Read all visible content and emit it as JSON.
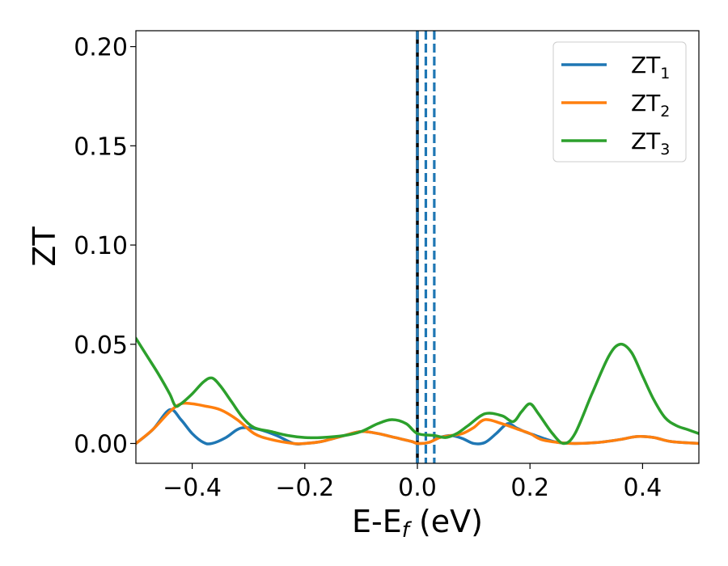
{
  "chart_data": {
    "type": "line",
    "title": "",
    "xlabel": "E-E",
    "xlabel_sub": "f",
    "xlabel_unit": " (eV)",
    "ylabel": "ZT",
    "xlim": [
      -0.5,
      0.5
    ],
    "ylim": [
      -0.01,
      0.208
    ],
    "x_ticks": [
      -0.4,
      -0.2,
      0.0,
      0.2,
      0.4
    ],
    "x_tick_labels": [
      "−0.4",
      "−0.2",
      "0.0",
      "0.2",
      "0.4"
    ],
    "y_ticks": [
      0.0,
      0.05,
      0.1,
      0.15,
      0.2
    ],
    "y_tick_labels": [
      "0.00",
      "0.05",
      "0.10",
      "0.15",
      "0.20"
    ],
    "grid": false,
    "legend_position": "top-right",
    "vertical_lines": [
      {
        "x": 0.0,
        "style": "solid",
        "color": "#000000"
      },
      {
        "x": 0.0,
        "style": "dashed",
        "color": "#1f77b4"
      },
      {
        "x": 0.015,
        "style": "dashed",
        "color": "#1f77b4"
      },
      {
        "x": 0.03,
        "style": "dashed",
        "color": "#1f77b4"
      }
    ],
    "series": [
      {
        "name": "ZT",
        "name_sub": "1",
        "color": "#1f77b4",
        "points": [
          [
            -0.5,
            0.0
          ],
          [
            -0.47,
            0.007
          ],
          [
            -0.44,
            0.017
          ],
          [
            -0.42,
            0.012
          ],
          [
            -0.4,
            0.005
          ],
          [
            -0.38,
            0.0005
          ],
          [
            -0.365,
            0.0
          ],
          [
            -0.34,
            0.003
          ],
          [
            -0.32,
            0.007
          ],
          [
            -0.305,
            0.008
          ],
          [
            -0.28,
            0.007
          ],
          [
            -0.25,
            0.004
          ],
          [
            -0.22,
            0.0
          ],
          [
            -0.2,
            0.0
          ],
          [
            -0.17,
            0.001
          ],
          [
            -0.13,
            0.004
          ],
          [
            -0.1,
            0.006
          ],
          [
            -0.07,
            0.005
          ],
          [
            -0.04,
            0.003
          ],
          [
            -0.01,
            0.001
          ],
          [
            0.0,
            0.0
          ],
          [
            0.02,
            0.0005
          ],
          [
            0.04,
            0.003
          ],
          [
            0.06,
            0.004
          ],
          [
            0.08,
            0.0025
          ],
          [
            0.1,
            0.0
          ],
          [
            0.12,
            0.0005
          ],
          [
            0.14,
            0.005
          ],
          [
            0.16,
            0.01
          ],
          [
            0.175,
            0.008
          ],
          [
            0.19,
            0.006
          ],
          [
            0.21,
            0.004
          ],
          [
            0.23,
            0.002
          ],
          [
            0.25,
            0.0005
          ],
          [
            0.28,
            0.0
          ],
          [
            0.32,
            0.0005
          ],
          [
            0.36,
            0.002
          ],
          [
            0.39,
            0.0035
          ],
          [
            0.42,
            0.003
          ],
          [
            0.45,
            0.001
          ],
          [
            0.5,
            0.0
          ]
        ]
      },
      {
        "name": "ZT",
        "name_sub": "2",
        "color": "#ff7f0e",
        "points": [
          [
            -0.5,
            0.0
          ],
          [
            -0.47,
            0.007
          ],
          [
            -0.44,
            0.016
          ],
          [
            -0.42,
            0.02
          ],
          [
            -0.4,
            0.02
          ],
          [
            -0.38,
            0.019
          ],
          [
            -0.35,
            0.017
          ],
          [
            -0.32,
            0.012
          ],
          [
            -0.29,
            0.005
          ],
          [
            -0.26,
            0.002
          ],
          [
            -0.22,
            0.0
          ],
          [
            -0.2,
            0.0
          ],
          [
            -0.17,
            0.001
          ],
          [
            -0.13,
            0.004
          ],
          [
            -0.1,
            0.006
          ],
          [
            -0.07,
            0.005
          ],
          [
            -0.04,
            0.003
          ],
          [
            -0.01,
            0.001
          ],
          [
            0.0,
            0.0
          ],
          [
            0.02,
            0.0005
          ],
          [
            0.04,
            0.003
          ],
          [
            0.06,
            0.004
          ],
          [
            0.08,
            0.005
          ],
          [
            0.1,
            0.008
          ],
          [
            0.12,
            0.012
          ],
          [
            0.15,
            0.01
          ],
          [
            0.18,
            0.007
          ],
          [
            0.2,
            0.005
          ],
          [
            0.22,
            0.002
          ],
          [
            0.25,
            0.0005
          ],
          [
            0.28,
            0.0
          ],
          [
            0.32,
            0.0005
          ],
          [
            0.36,
            0.002
          ],
          [
            0.39,
            0.0035
          ],
          [
            0.42,
            0.003
          ],
          [
            0.45,
            0.001
          ],
          [
            0.5,
            0.0
          ]
        ]
      },
      {
        "name": "ZT",
        "name_sub": "3",
        "color": "#2ca02c",
        "points": [
          [
            -0.5,
            0.053
          ],
          [
            -0.48,
            0.044
          ],
          [
            -0.46,
            0.035
          ],
          [
            -0.44,
            0.025
          ],
          [
            -0.43,
            0.019
          ],
          [
            -0.42,
            0.02
          ],
          [
            -0.4,
            0.025
          ],
          [
            -0.38,
            0.031
          ],
          [
            -0.365,
            0.033
          ],
          [
            -0.35,
            0.029
          ],
          [
            -0.33,
            0.021
          ],
          [
            -0.31,
            0.013
          ],
          [
            -0.29,
            0.008
          ],
          [
            -0.26,
            0.006
          ],
          [
            -0.23,
            0.004
          ],
          [
            -0.2,
            0.003
          ],
          [
            -0.17,
            0.003
          ],
          [
            -0.13,
            0.004
          ],
          [
            -0.1,
            0.006
          ],
          [
            -0.07,
            0.01
          ],
          [
            -0.045,
            0.012
          ],
          [
            -0.02,
            0.01
          ],
          [
            0.0,
            0.005
          ],
          [
            0.03,
            0.004
          ],
          [
            0.05,
            0.003
          ],
          [
            0.07,
            0.005
          ],
          [
            0.09,
            0.009
          ],
          [
            0.12,
            0.015
          ],
          [
            0.15,
            0.014
          ],
          [
            0.17,
            0.011
          ],
          [
            0.185,
            0.016
          ],
          [
            0.2,
            0.02
          ],
          [
            0.215,
            0.015
          ],
          [
            0.24,
            0.005
          ],
          [
            0.26,
            0.0
          ],
          [
            0.28,
            0.005
          ],
          [
            0.31,
            0.025
          ],
          [
            0.34,
            0.044
          ],
          [
            0.36,
            0.05
          ],
          [
            0.38,
            0.046
          ],
          [
            0.4,
            0.034
          ],
          [
            0.42,
            0.022
          ],
          [
            0.44,
            0.013
          ],
          [
            0.46,
            0.009
          ],
          [
            0.48,
            0.007
          ],
          [
            0.5,
            0.005
          ]
        ]
      }
    ]
  }
}
